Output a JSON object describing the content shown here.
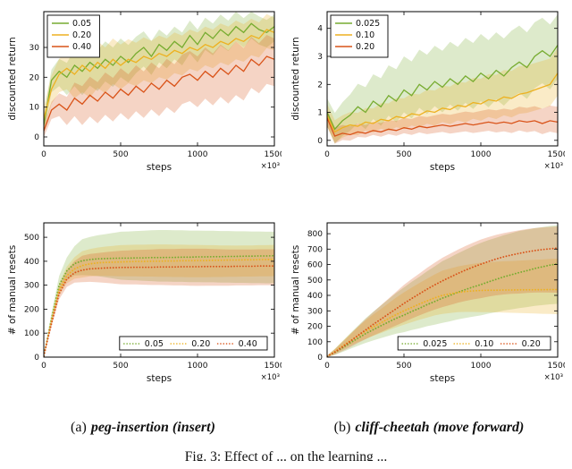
{
  "figure": {
    "caption_a_prefix": "(a)",
    "caption_a_title": "peg-insertion (insert)",
    "caption_b_prefix": "(b)",
    "caption_b_title": "cliff-cheetah (move forward)",
    "fig_caption": "Fig. 3: Effect of ... on the learning ..."
  },
  "steps_x": [
    0,
    50,
    100,
    150,
    200,
    250,
    300,
    350,
    400,
    450,
    500,
    550,
    600,
    650,
    700,
    750,
    800,
    850,
    900,
    950,
    1000,
    1050,
    1100,
    1150,
    1200,
    1250,
    1300,
    1350,
    1400,
    1450,
    1500
  ],
  "band_x": [
    0,
    250,
    500,
    750,
    1000,
    1250,
    1500
  ],
  "chart_data": [
    {
      "id": "a-return",
      "type": "line",
      "subplot": "peg-insertion (insert)",
      "ylabel": "discounted return",
      "xlabel": "steps",
      "x_exp": "×10³",
      "xlim": [
        0,
        1500
      ],
      "ylim": [
        -3,
        42
      ],
      "xticks": [
        0,
        500,
        1000,
        1500
      ],
      "yticks": [
        0,
        10,
        20,
        30
      ],
      "x_ref": "steps_x",
      "line_style": "solid",
      "legend_pos": "top-left",
      "series": [
        {
          "name": "0.05",
          "color": "#77AC30",
          "values": [
            4,
            19,
            22,
            20,
            24,
            22,
            25,
            23,
            26,
            24,
            27,
            25,
            28,
            30,
            27,
            31,
            29,
            32,
            30,
            34,
            31,
            35,
            33,
            36,
            34,
            37,
            35,
            38,
            36,
            35,
            37
          ],
          "band_below": [
            3,
            8,
            7,
            6,
            6,
            5,
            5
          ],
          "band_above": [
            3,
            6,
            6,
            5,
            5,
            5,
            4
          ]
        },
        {
          "name": "0.20",
          "color": "#EDB120",
          "values": [
            6,
            16,
            21,
            23,
            21,
            24,
            22,
            25,
            23,
            26,
            24,
            26,
            25,
            27,
            26,
            28,
            27,
            29,
            28,
            30,
            29,
            31,
            30,
            32,
            31,
            33,
            32,
            34,
            33,
            36,
            35
          ],
          "band_below": [
            4,
            9,
            8,
            8,
            7,
            7,
            6
          ],
          "band_above": [
            4,
            7,
            7,
            6,
            6,
            6,
            5
          ]
        },
        {
          "name": "0.40",
          "color": "#D95319",
          "values": [
            2,
            9,
            11,
            9,
            13,
            11,
            14,
            12,
            15,
            13,
            16,
            14,
            17,
            15,
            18,
            16,
            19,
            17,
            20,
            21,
            19,
            22,
            20,
            23,
            21,
            24,
            22,
            26,
            24,
            27,
            26
          ],
          "band_below": [
            2,
            7,
            8,
            9,
            9,
            10,
            9
          ],
          "band_above": [
            2,
            6,
            7,
            7,
            8,
            8,
            7
          ]
        }
      ]
    },
    {
      "id": "b-return",
      "type": "line",
      "subplot": "cliff-cheetah (move forward)",
      "ylabel": "discounted return",
      "xlabel": "steps",
      "x_exp": "×10³",
      "xlim": [
        0,
        1500
      ],
      "ylim": [
        -0.2,
        4.6
      ],
      "xticks": [
        0,
        500,
        1000,
        1500
      ],
      "yticks": [
        0,
        1,
        2,
        3,
        4
      ],
      "x_ref": "steps_x",
      "line_style": "solid",
      "legend_pos": "top-left",
      "series": [
        {
          "name": "0.025",
          "color": "#77AC30",
          "values": [
            1.0,
            0.4,
            0.7,
            0.9,
            1.2,
            1.0,
            1.4,
            1.2,
            1.6,
            1.4,
            1.8,
            1.6,
            2.0,
            1.8,
            2.1,
            1.9,
            2.2,
            2.0,
            2.3,
            2.1,
            2.4,
            2.2,
            2.5,
            2.3,
            2.6,
            2.8,
            2.6,
            3.0,
            3.2,
            3.0,
            3.4
          ],
          "band_below": [
            0.5,
            0.6,
            0.8,
            0.9,
            1.0,
            1.1,
            1.2
          ],
          "band_above": [
            0.5,
            0.9,
            1.2,
            1.3,
            1.4,
            1.3,
            1.1
          ]
        },
        {
          "name": "0.10",
          "color": "#EDB120",
          "values": [
            0.9,
            0.3,
            0.45,
            0.55,
            0.5,
            0.65,
            0.6,
            0.75,
            0.7,
            0.85,
            0.8,
            0.95,
            0.9,
            1.05,
            1.0,
            1.15,
            1.1,
            1.25,
            1.2,
            1.35,
            1.3,
            1.45,
            1.4,
            1.55,
            1.5,
            1.65,
            1.7,
            1.8,
            1.9,
            2.0,
            2.4
          ],
          "band_below": [
            0.4,
            0.3,
            0.4,
            0.5,
            0.6,
            0.7,
            0.8
          ],
          "band_above": [
            0.4,
            0.5,
            0.7,
            0.8,
            0.9,
            1.0,
            0.9
          ]
        },
        {
          "name": "0.20",
          "color": "#D95319",
          "values": [
            0.8,
            0.15,
            0.25,
            0.2,
            0.3,
            0.25,
            0.35,
            0.3,
            0.4,
            0.35,
            0.45,
            0.4,
            0.5,
            0.45,
            0.5,
            0.55,
            0.5,
            0.55,
            0.6,
            0.55,
            0.6,
            0.65,
            0.6,
            0.65,
            0.6,
            0.7,
            0.65,
            0.7,
            0.6,
            0.7,
            0.65
          ],
          "band_below": [
            0.3,
            0.15,
            0.2,
            0.25,
            0.3,
            0.35,
            0.4
          ],
          "band_above": [
            0.3,
            0.3,
            0.35,
            0.4,
            0.45,
            0.5,
            0.55
          ]
        }
      ]
    },
    {
      "id": "a-resets",
      "type": "line",
      "subplot": "peg-insertion (insert)",
      "ylabel": "# of manual resets",
      "xlabel": "steps",
      "x_exp": "×10³",
      "xlim": [
        0,
        1500
      ],
      "ylim": [
        0,
        560
      ],
      "xticks": [
        0,
        500,
        1000,
        1500
      ],
      "yticks": [
        0,
        100,
        200,
        300,
        400,
        500
      ],
      "x_ref": "steps_x",
      "line_style": "dotted",
      "legend_pos": "bottom",
      "series": [
        {
          "name": "0.05",
          "color": "#77AC30",
          "values": [
            5,
            160,
            300,
            360,
            390,
            402,
            407,
            410,
            411,
            412,
            413,
            413,
            414,
            414,
            415,
            415,
            416,
            416,
            417,
            417,
            418,
            418,
            419,
            419,
            420,
            420,
            421,
            421,
            422,
            422,
            423
          ],
          "band_below": [
            5,
            60,
            90,
            100,
            105,
            110,
            115
          ],
          "band_above": [
            5,
            90,
            110,
            115,
            110,
            105,
            100
          ]
        },
        {
          "name": "0.20",
          "color": "#EDB120",
          "values": [
            5,
            150,
            280,
            340,
            368,
            382,
            389,
            393,
            395,
            396,
            397,
            398,
            399,
            399,
            400,
            400,
            401,
            401,
            402,
            402,
            403,
            403,
            404,
            404,
            405,
            405,
            406,
            406,
            407,
            407,
            408
          ],
          "band_below": [
            5,
            50,
            60,
            65,
            70,
            70,
            70
          ],
          "band_above": [
            5,
            60,
            70,
            70,
            65,
            60,
            60
          ]
        },
        {
          "name": "0.40",
          "color": "#D95319",
          "values": [
            5,
            140,
            265,
            325,
            352,
            363,
            368,
            370,
            372,
            373,
            374,
            374,
            375,
            375,
            375,
            376,
            376,
            376,
            377,
            377,
            377,
            378,
            378,
            378,
            378,
            379,
            379,
            379,
            380,
            380,
            380
          ],
          "band_below": [
            5,
            50,
            70,
            75,
            80,
            80,
            80
          ],
          "band_above": [
            5,
            60,
            70,
            75,
            75,
            70,
            70
          ]
        }
      ]
    },
    {
      "id": "b-resets",
      "type": "line",
      "subplot": "cliff-cheetah (move forward)",
      "ylabel": "# of manual resets",
      "xlabel": "steps",
      "x_exp": "×10³",
      "xlim": [
        0,
        1500
      ],
      "ylim": [
        0,
        870
      ],
      "xticks": [
        0,
        500,
        1000,
        1500
      ],
      "yticks": [
        0,
        100,
        200,
        300,
        400,
        500,
        600,
        700,
        800
      ],
      "x_ref": "steps_x",
      "line_style": "dotted",
      "legend_pos": "bottom",
      "series": [
        {
          "name": "0.025",
          "color": "#77AC30",
          "values": [
            5,
            30,
            60,
            92,
            122,
            152,
            178,
            203,
            228,
            252,
            272,
            296,
            316,
            340,
            360,
            382,
            400,
            420,
            438,
            455,
            470,
            488,
            504,
            520,
            534,
            548,
            560,
            574,
            585,
            596,
            605
          ],
          "band_below": [
            5,
            60,
            110,
            160,
            200,
            230,
            260
          ],
          "band_above": [
            5,
            100,
            180,
            240,
            270,
            270,
            250
          ]
        },
        {
          "name": "0.10",
          "color": "#EDB120",
          "values": [
            5,
            35,
            72,
            106,
            138,
            168,
            196,
            222,
            250,
            276,
            300,
            322,
            344,
            364,
            384,
            400,
            410,
            419,
            425,
            429,
            432,
            433,
            434,
            435,
            435,
            436,
            436,
            437,
            437,
            438,
            438
          ],
          "band_below": [
            5,
            50,
            90,
            120,
            140,
            150,
            160
          ],
          "band_above": [
            5,
            70,
            120,
            160,
            180,
            190,
            200
          ]
        },
        {
          "name": "0.20",
          "color": "#D95319",
          "values": [
            5,
            32,
            66,
            102,
            140,
            176,
            212,
            246,
            280,
            314,
            348,
            380,
            410,
            440,
            468,
            494,
            518,
            542,
            564,
            584,
            602,
            620,
            636,
            650,
            662,
            672,
            682,
            690,
            697,
            702,
            707
          ],
          "band_below": [
            5,
            60,
            120,
            170,
            220,
            260,
            290
          ],
          "band_above": [
            5,
            70,
            120,
            150,
            160,
            150,
            140
          ]
        }
      ]
    }
  ]
}
